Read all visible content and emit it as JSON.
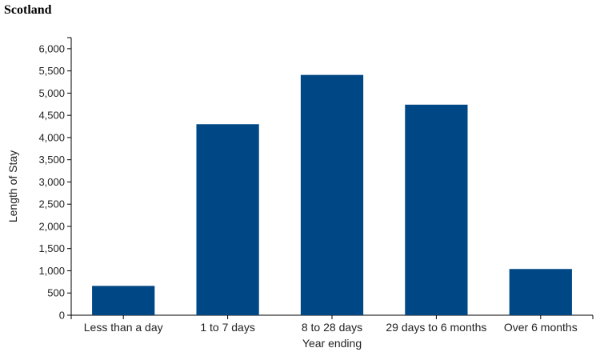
{
  "chart_data": {
    "type": "bar",
    "title": "Scotland",
    "xlabel": "Year ending",
    "ylabel": "Length of Stay",
    "categories": [
      "Less than a day",
      "1 to 7 days",
      "8 to 28 days",
      "29 days to 6 months",
      "Over 6 months"
    ],
    "values": [
      660,
      4300,
      5410,
      4740,
      1040
    ],
    "ylim": [
      0,
      6250
    ],
    "yticks": [
      0,
      500,
      1000,
      1500,
      2000,
      2500,
      3000,
      3500,
      4000,
      4500,
      5000,
      5500,
      6000
    ],
    "ytick_labels": [
      "0",
      "500",
      "1,000",
      "1,500",
      "2,000",
      "2,500",
      "3,000",
      "3,500",
      "4,000",
      "4,500",
      "5,000",
      "5,500",
      "6,000"
    ],
    "bar_color": "#004785",
    "grid": false,
    "legend": false
  }
}
